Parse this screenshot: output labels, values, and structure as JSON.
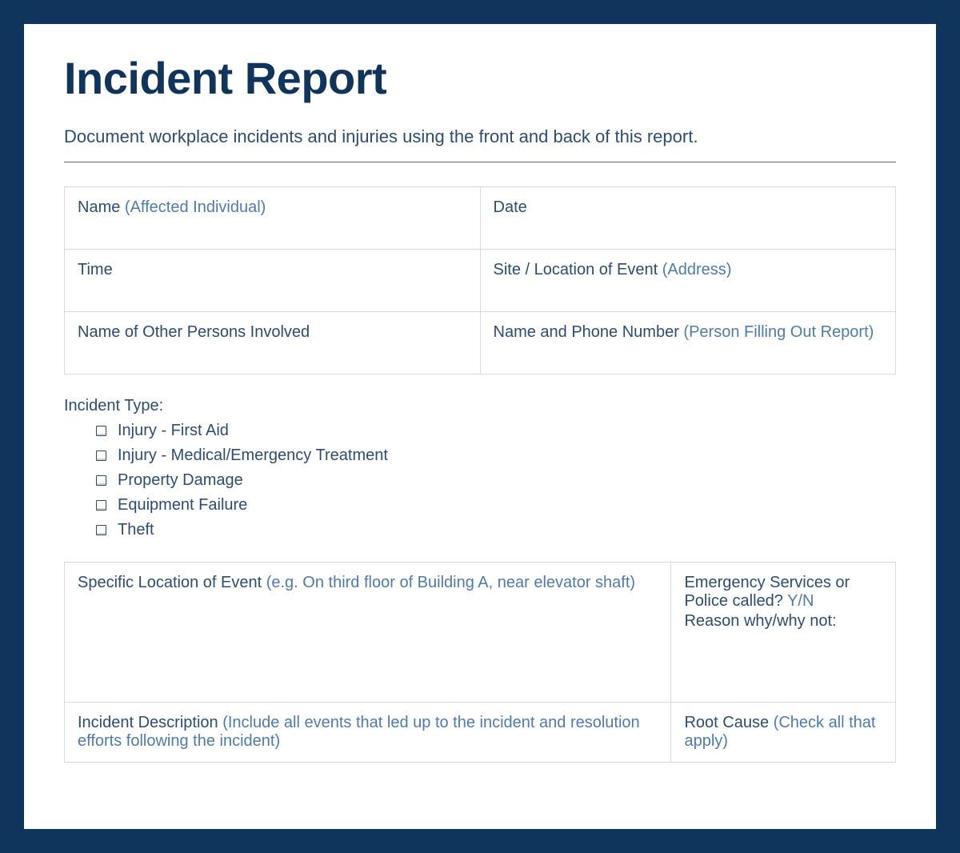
{
  "colors": {
    "frame_bg": "#10355c",
    "page_bg": "#ffffff",
    "title": "#10355c",
    "text": "#2b4d73",
    "hint": "#4d7bb0",
    "border": "#d8dbdd",
    "hr": "#666666"
  },
  "typography": {
    "title_fontsize": 56,
    "title_fontweight": 800,
    "body_fontsize": 20,
    "subtitle_fontsize": 22
  },
  "layout": {
    "outer_width": 1200,
    "outer_height": 1066,
    "frame_padding": 30,
    "page_padding_x": 50,
    "page_padding_top": 35
  },
  "title": "Incident Report",
  "subtitle": "Document workplace incidents and injuries using the front and back of this report.",
  "info_table": {
    "rows": [
      [
        {
          "label": "Name",
          "hint": "(Affected Individual)"
        },
        {
          "label": "Date",
          "hint": ""
        }
      ],
      [
        {
          "label": "Time",
          "hint": ""
        },
        {
          "label": "Site / Location of Event",
          "hint": "(Address)"
        }
      ],
      [
        {
          "label": "Name of Other Persons Involved",
          "hint": ""
        },
        {
          "label": "Name and Phone Number",
          "hint": "(Person Filling Out Report)"
        }
      ]
    ]
  },
  "incident_type": {
    "heading": "Incident Type:",
    "options": [
      "Injury - First Aid",
      "Injury - Medical/Emergency Treatment",
      "Property Damage",
      "Equipment Failure",
      "Theft"
    ]
  },
  "details_table": {
    "rows": [
      {
        "left_label": "Specific Location of Event",
        "left_hint": "(e.g. On third floor of Building A, near elevator shaft)",
        "right_line1_label": "Emergency Services or Police called?",
        "right_line1_hint": "Y/N",
        "right_line2_label": "Reason why/why not:"
      },
      {
        "left_label": "Incident Description",
        "left_hint": "(Include all events that led up to the incident and resolution efforts following the incident)",
        "right_label": "Root Cause",
        "right_hint": "(Check all that apply)"
      }
    ]
  }
}
